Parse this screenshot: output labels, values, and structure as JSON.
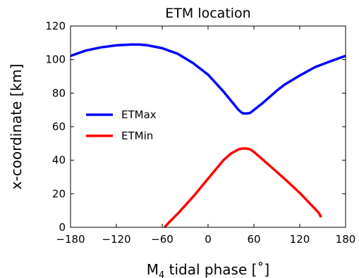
{
  "chart_data": {
    "type": "line",
    "title": "ETM location",
    "xlabel": "M",
    "xlabel_sub": "4",
    "xlabel_rest": " tidal phase [˚]",
    "ylabel": "x-coordinate [km]",
    "xlim": [
      -180,
      180
    ],
    "ylim": [
      0,
      120
    ],
    "xticks": [
      -180,
      -120,
      -60,
      0,
      60,
      120,
      180
    ],
    "xtick_labels": [
      "−180",
      "−120",
      "−60",
      "0",
      "60",
      "120",
      "180"
    ],
    "yticks": [
      0,
      20,
      40,
      60,
      80,
      100,
      120
    ],
    "ytick_labels": [
      "0",
      "20",
      "40",
      "60",
      "80",
      "100",
      "120"
    ],
    "grid": false,
    "legend_position": "center-left",
    "series": [
      {
        "name": "ETMax",
        "color": "#0000ff",
        "x": [
          -180,
          -160,
          -140,
          -120,
          -100,
          -90,
          -80,
          -60,
          -40,
          -20,
          0,
          20,
          30,
          40,
          45,
          50,
          55,
          60,
          70,
          80,
          90,
          100,
          120,
          140,
          160,
          180
        ],
        "y": [
          102.2,
          105.4,
          107.3,
          108.5,
          109,
          109,
          108.6,
          106.8,
          103.5,
          98,
          91,
          81,
          75.5,
          70,
          68,
          67.8,
          68.2,
          70,
          73.5,
          77.5,
          81.5,
          85,
          90.5,
          95.5,
          99,
          102.2
        ]
      },
      {
        "name": "ETMin",
        "color": "#ff0000",
        "x": [
          -57,
          -50,
          -40,
          -20,
          0,
          20,
          30,
          40,
          45,
          50,
          55,
          60,
          80,
          100,
          120,
          140,
          145,
          148
        ],
        "y": [
          0,
          3.5,
          8,
          18,
          29,
          40,
          44,
          46.5,
          47,
          47,
          46.5,
          45,
          37,
          29,
          20.5,
          11,
          8.5,
          6
        ]
      }
    ]
  }
}
